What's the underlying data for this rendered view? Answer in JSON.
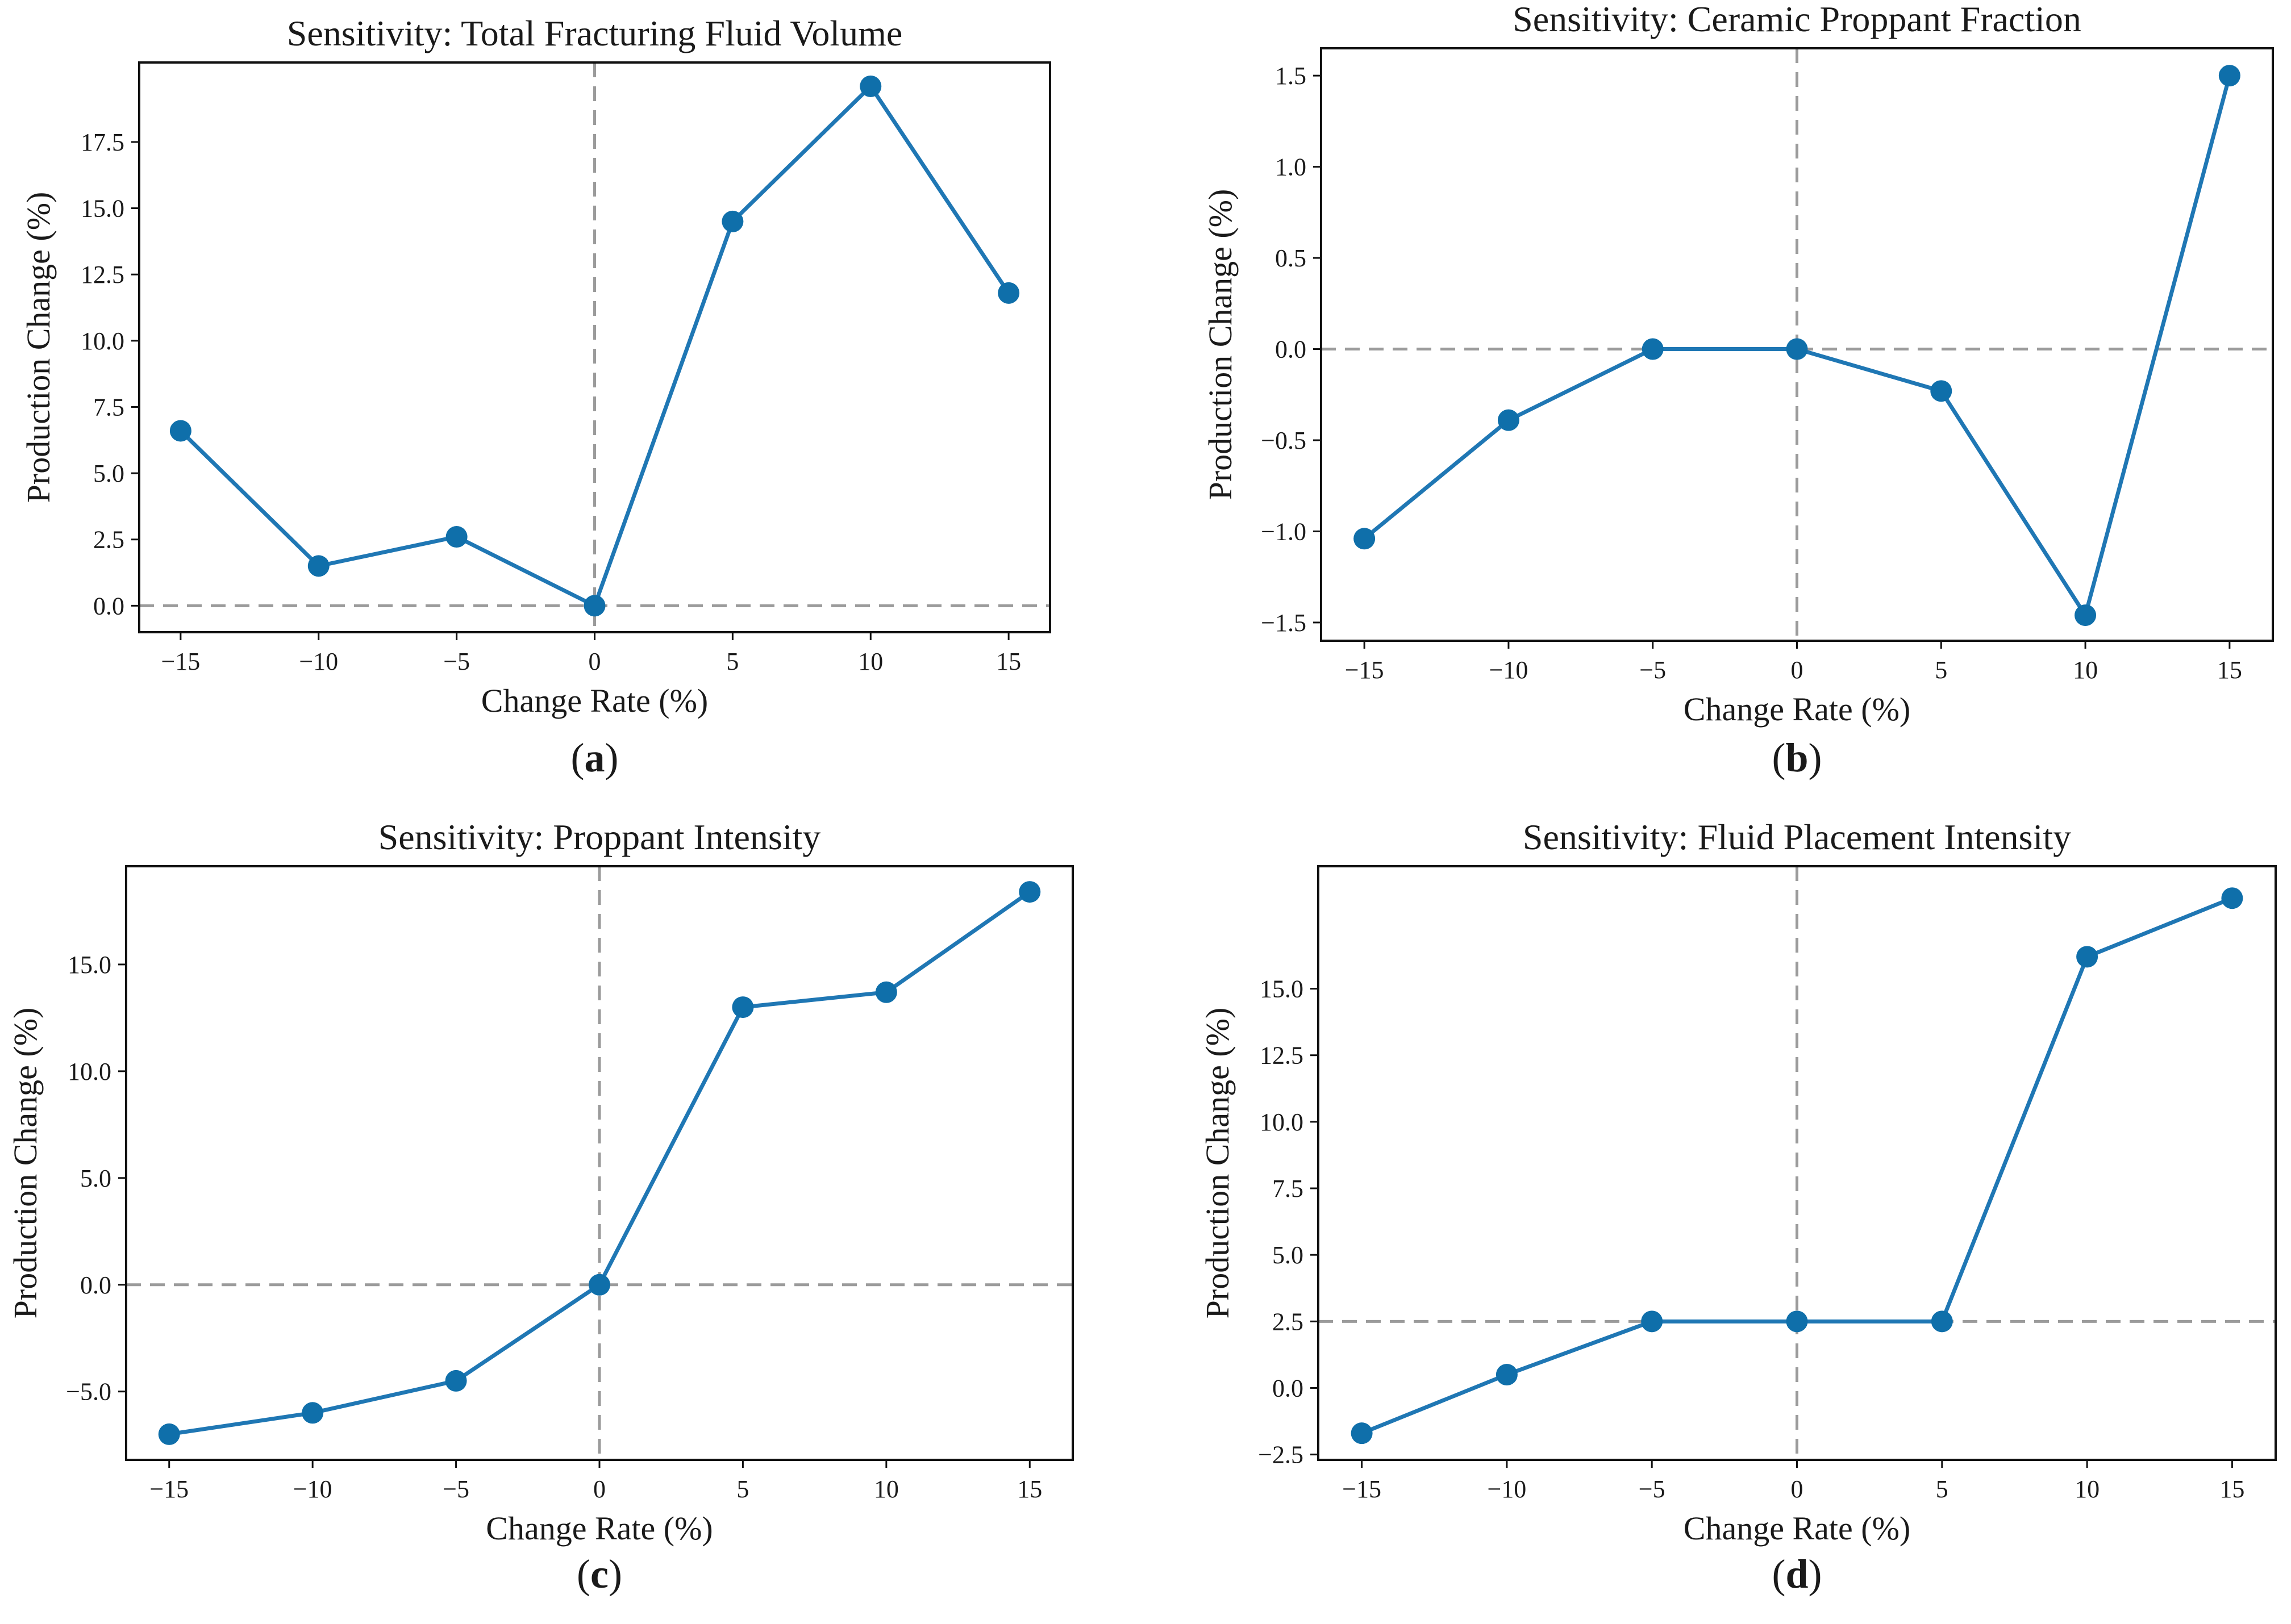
{
  "colors": {
    "series": "#1f77b4",
    "marker": "#0f6faa",
    "reference": "#9b9b9b"
  },
  "chart_data": [
    {
      "type": "line",
      "panel_label": "a",
      "title": "Sensitivity: Total Fracturing Fluid Volume",
      "xlabel": "Change Rate (%)",
      "ylabel": "Production Change (%)",
      "x": [
        -15,
        -10,
        -5,
        0,
        5,
        10,
        15
      ],
      "series": [
        {
          "values": [
            6.6,
            1.5,
            2.6,
            0.0,
            14.5,
            19.6,
            11.8
          ]
        }
      ],
      "xlim": [
        -16.5,
        16.5
      ],
      "ylim": [
        -1.0,
        20.5
      ],
      "xticks": [
        -15,
        -10,
        -5,
        0,
        5,
        10,
        15
      ],
      "xtick_labels": [
        "−15",
        "−10",
        "−5",
        "0",
        "5",
        "10",
        "15"
      ],
      "yticks": [
        0.0,
        2.5,
        5.0,
        7.5,
        10.0,
        12.5,
        15.0,
        17.5
      ],
      "ytick_labels": [
        "0.0",
        "2.5",
        "5.0",
        "7.5",
        "10.0",
        "12.5",
        "15.0",
        "17.5"
      ],
      "reference_lines": {
        "x": 0,
        "y": 0.0
      },
      "grid": false
    },
    {
      "type": "line",
      "panel_label": "b",
      "title": "Sensitivity: Ceramic Proppant Fraction",
      "xlabel": "Change Rate (%)",
      "ylabel": "Production Change (%)",
      "x": [
        -15,
        -10,
        -5,
        0,
        5,
        10,
        15
      ],
      "series": [
        {
          "values": [
            -1.04,
            -0.39,
            0.0,
            0.0,
            -0.23,
            -1.46,
            1.5
          ]
        }
      ],
      "xlim": [
        -16.5,
        16.5
      ],
      "ylim": [
        -1.6,
        1.65
      ],
      "xticks": [
        -15,
        -10,
        -5,
        0,
        5,
        10,
        15
      ],
      "xtick_labels": [
        "−15",
        "−10",
        "−5",
        "0",
        "5",
        "10",
        "15"
      ],
      "yticks": [
        -1.5,
        -1.0,
        -0.5,
        0.0,
        0.5,
        1.0,
        1.5
      ],
      "ytick_labels": [
        "−1.5",
        "−1.0",
        "−0.5",
        "0.0",
        "0.5",
        "1.0",
        "1.5"
      ],
      "reference_lines": {
        "x": 0,
        "y": 0.0
      },
      "grid": false
    },
    {
      "type": "line",
      "panel_label": "c",
      "title": "Sensitivity: Proppant Intensity",
      "xlabel": "Change Rate (%)",
      "ylabel": "Production Change (%)",
      "x": [
        -15,
        -10,
        -5,
        0,
        5,
        10,
        15
      ],
      "series": [
        {
          "values": [
            -7.0,
            -6.0,
            -4.5,
            0.0,
            13.0,
            13.7,
            18.4
          ]
        }
      ],
      "xlim": [
        -16.5,
        16.5
      ],
      "ylim": [
        -8.2,
        19.6
      ],
      "xticks": [
        -15,
        -10,
        -5,
        0,
        5,
        10,
        15
      ],
      "xtick_labels": [
        "−15",
        "−10",
        "−5",
        "0",
        "5",
        "10",
        "15"
      ],
      "yticks": [
        -5.0,
        0.0,
        5.0,
        10.0,
        15.0
      ],
      "ytick_labels": [
        "−5.0",
        "0.0",
        "5.0",
        "10.0",
        "15.0"
      ],
      "reference_lines": {
        "x": 0,
        "y": 0.0
      },
      "grid": false
    },
    {
      "type": "line",
      "panel_label": "d",
      "title": "Sensitivity: Fluid Placement Intensity",
      "xlabel": "Change Rate (%)",
      "ylabel": "Production Change (%)",
      "x": [
        -15,
        -10,
        -5,
        0,
        5,
        10,
        15
      ],
      "series": [
        {
          "values": [
            -1.7,
            0.5,
            2.5,
            2.5,
            2.5,
            16.2,
            18.4
          ]
        }
      ],
      "xlim": [
        -16.5,
        16.5
      ],
      "ylim": [
        -2.7,
        19.6
      ],
      "xticks": [
        -15,
        -10,
        -5,
        0,
        5,
        10,
        15
      ],
      "xtick_labels": [
        "−15",
        "−10",
        "−5",
        "0",
        "5",
        "10",
        "15"
      ],
      "yticks": [
        -2.5,
        0.0,
        2.5,
        5.0,
        7.5,
        10.0,
        12.5,
        15.0
      ],
      "ytick_labels": [
        "−2.5",
        "0.0",
        "2.5",
        "5.0",
        "7.5",
        "10.0",
        "12.5",
        "15.0"
      ],
      "reference_lines": {
        "x": 0,
        "y": 2.5
      },
      "grid": false
    }
  ]
}
